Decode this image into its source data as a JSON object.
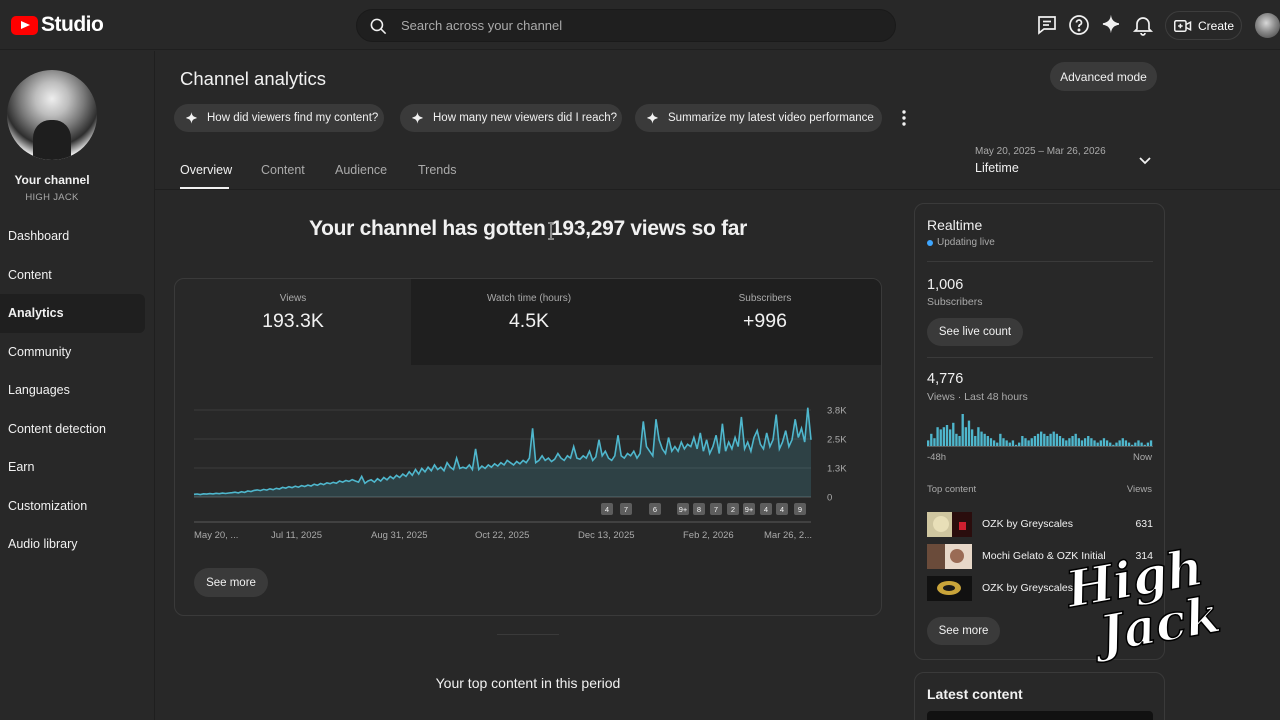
{
  "app": {
    "logo_text": "Studio"
  },
  "search": {
    "placeholder": "Search across your channel"
  },
  "topbar": {
    "create_label": "Create"
  },
  "sidebar": {
    "channel_label": "Your channel",
    "channel_handle": "HIGH JACK",
    "items": [
      {
        "label": "Dashboard"
      },
      {
        "label": "Content"
      },
      {
        "label": "Analytics",
        "active": true
      },
      {
        "label": "Community"
      },
      {
        "label": "Languages"
      },
      {
        "label": "Content detection"
      },
      {
        "label": "Earn"
      },
      {
        "label": "Customization"
      },
      {
        "label": "Audio library"
      }
    ]
  },
  "header": {
    "title": "Channel analytics",
    "advanced_label": "Advanced mode",
    "chips": [
      "How did viewers find my content?",
      "How many new viewers did I reach?",
      "Summarize my latest video performance"
    ],
    "tabs": [
      "Overview",
      "Content",
      "Audience",
      "Trends"
    ],
    "date_range": "May 20, 2025 – Mar 26, 2026",
    "date_label": "Lifetime"
  },
  "overview": {
    "headline": "Your channel has gotten 193,297 views so far",
    "metrics": [
      {
        "label": "Views",
        "value": "193.3K"
      },
      {
        "label": "Watch time (hours)",
        "value": "4.5K"
      },
      {
        "label": "Subscribers",
        "value": "+996"
      }
    ],
    "see_more": "See more",
    "top_content_title": "Your top content in this period"
  },
  "chart_data": {
    "type": "area",
    "title": "",
    "xlabel": "",
    "ylabel": "",
    "x_ticks": [
      "May 20, ...",
      "Jul 11, 2025",
      "Aug 31, 2025",
      "Oct 22, 2025",
      "Dec 13, 2025",
      "Feb 2, 2026",
      "Mar 26, 2..."
    ],
    "y_ticks": [
      "0",
      "1.3K",
      "2.5K",
      "3.8K"
    ],
    "ylim": [
      0,
      3800
    ],
    "grid": true,
    "series": [
      {
        "values": [
          120,
          130,
          110,
          140,
          125,
          150,
          135,
          160,
          145,
          170,
          155,
          175,
          190,
          210,
          180,
          230,
          200,
          260,
          240,
          290,
          310,
          280,
          330,
          300,
          360,
          320,
          380,
          350,
          420,
          390,
          450,
          410,
          470,
          430,
          500,
          460,
          520,
          480,
          560,
          510,
          590,
          540,
          620,
          580,
          640,
          600,
          700,
          650,
          720,
          680,
          760,
          700,
          650,
          900,
          600,
          700,
          750,
          650,
          800,
          700,
          850,
          750,
          900,
          800,
          950,
          850,
          1000,
          900,
          1100,
          950,
          1200,
          1000,
          1250,
          1100,
          1300,
          1150,
          1400,
          1200,
          1300,
          1150,
          1500,
          1300,
          1200,
          1700,
          1250,
          1300,
          1250,
          1400,
          1200,
          2100,
          1200,
          1350,
          1250,
          1400,
          1300,
          1450,
          1350,
          1500,
          1400,
          1600,
          1500,
          1400,
          1550,
          1450,
          1600,
          1500,
          1700,
          3000,
          1500,
          1600,
          1800,
          1600,
          1700,
          1550,
          1650,
          1900,
          1700,
          1600,
          1800,
          1700,
          2200,
          1700,
          1650,
          1800,
          1700,
          2000,
          1600,
          1750,
          2500,
          1800,
          2000,
          1700,
          1600,
          1800,
          2700,
          1800,
          1700,
          1900,
          1800,
          2000,
          1700,
          1900,
          3300,
          2200,
          2000,
          1800,
          3400,
          2500,
          2100,
          1900,
          2600,
          2000,
          2200,
          2000,
          2400,
          2100,
          2300,
          2200,
          2600,
          2100,
          2800,
          2000,
          2500,
          1900,
          2200,
          2700,
          1900,
          3200,
          2000,
          2400,
          2100,
          2600,
          2200,
          3500,
          2100,
          2400,
          2000,
          2600,
          2900,
          2300,
          2100,
          2800,
          2200,
          2500,
          3600,
          2100,
          2400,
          2900,
          2200,
          2500,
          3400,
          2600,
          3000,
          2400,
          3900,
          2500
        ]
      }
    ],
    "markers": [
      "4",
      "7",
      "6",
      "9+",
      "8",
      "7",
      "2",
      "9+",
      "4",
      "4",
      "9"
    ]
  },
  "realtime": {
    "title": "Realtime",
    "live_label": "Updating live",
    "subscribers_value": "1,006",
    "subscribers_label": "Subscribers",
    "live_count_button": "See live count",
    "views_value": "4,776",
    "views_label": "Views · Last 48 hours",
    "axis_start": "-48h",
    "axis_end": "Now",
    "top_content_label": "Top content",
    "views_col_label": "Views",
    "bars": [
      3,
      6,
      4,
      9,
      8,
      9,
      10,
      8,
      11,
      6,
      5,
      15,
      9,
      12,
      8,
      5,
      9,
      7,
      6,
      5,
      4,
      3,
      2,
      6,
      4,
      3,
      2,
      3,
      1,
      2,
      5,
      4,
      3,
      4,
      5,
      6,
      7,
      6,
      5,
      6,
      7,
      6,
      5,
      4,
      3,
      4,
      5,
      6,
      4,
      3,
      4,
      5,
      4,
      3,
      2,
      3,
      4,
      3,
      2,
      1,
      2,
      3,
      4,
      3,
      2,
      1,
      2,
      3,
      2,
      1,
      2,
      3
    ],
    "rows": [
      {
        "title": "OZK by Greyscales",
        "views": "631"
      },
      {
        "title": "Mochi Gelato & OZK Initial",
        "views": "314"
      },
      {
        "title": "OZK by Greyscales R",
        "views": ""
      }
    ],
    "see_more": "See more"
  },
  "latest": {
    "title": "Latest content"
  },
  "watermark": {
    "text": "High Jack"
  },
  "colors": {
    "accent": "#3ea6ff",
    "brand": "#ff0000",
    "chart_line": "#4fb7cd"
  }
}
